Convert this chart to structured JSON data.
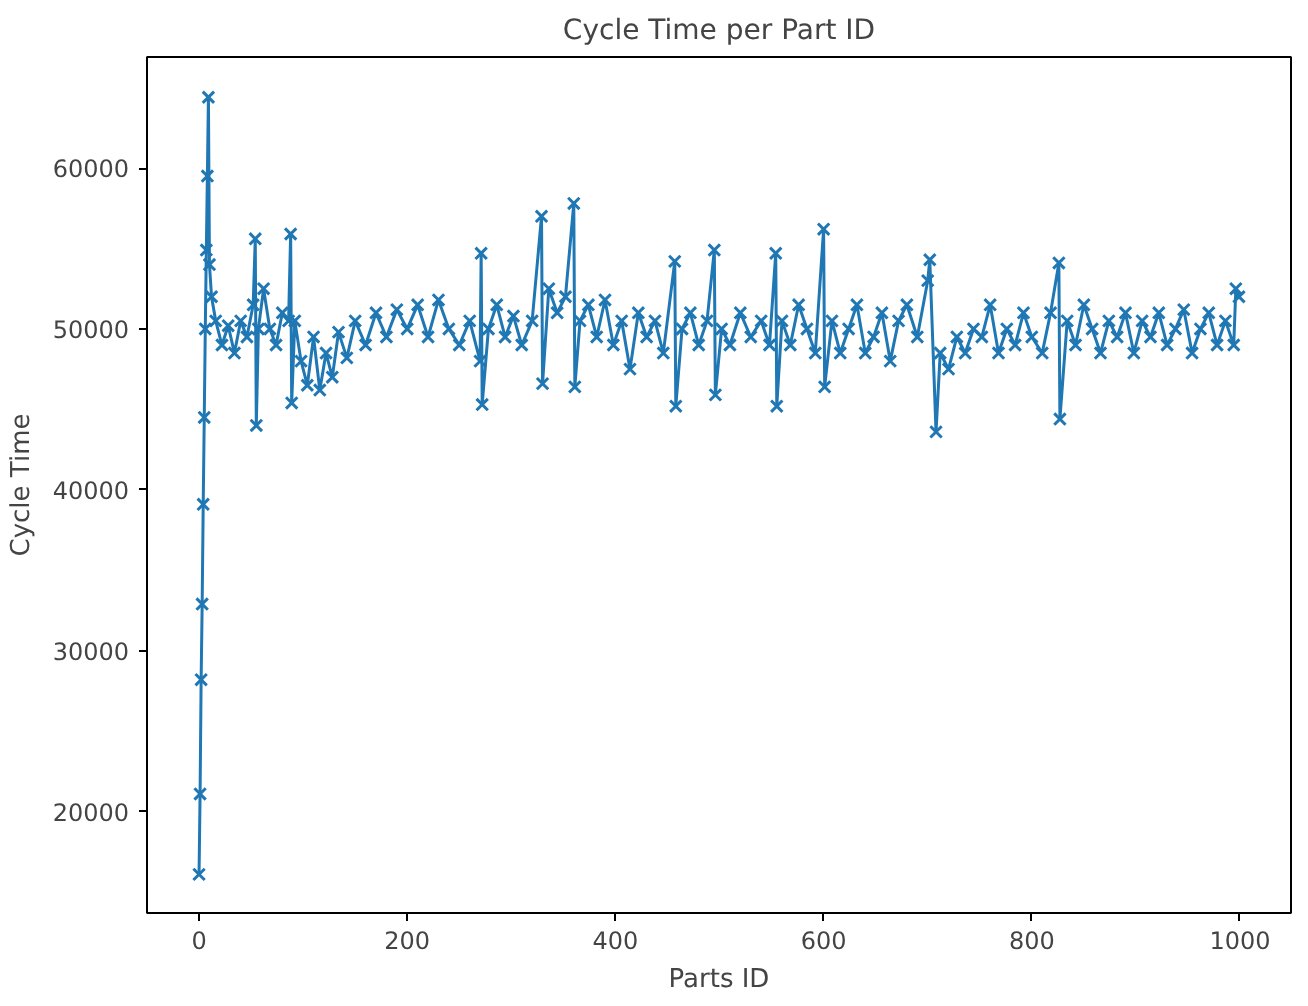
{
  "chart_data": {
    "type": "line",
    "title": "Cycle Time per Part ID",
    "xlabel": "Parts ID",
    "ylabel": "Cycle Time",
    "xlim": [
      -50,
      1049
    ],
    "ylim": [
      13700,
      66900
    ],
    "xticks": [
      0,
      200,
      400,
      600,
      800,
      1000
    ],
    "yticks": [
      20000,
      30000,
      40000,
      50000,
      60000
    ],
    "grid": false,
    "marker": "cross",
    "line_style": "solid",
    "x": [
      0,
      1,
      2,
      3,
      4,
      5,
      6,
      7,
      8,
      9,
      10,
      12,
      16,
      22,
      28,
      34,
      40,
      46,
      52,
      54,
      55,
      57,
      62,
      68,
      74,
      80,
      86,
      88,
      89,
      92,
      98,
      104,
      110,
      116,
      122,
      128,
      134,
      142,
      150,
      160,
      170,
      180,
      190,
      200,
      210,
      220,
      230,
      240,
      250,
      260,
      270,
      271,
      272,
      278,
      286,
      294,
      302,
      310,
      320,
      329,
      330,
      336,
      344,
      352,
      360,
      361,
      366,
      374,
      382,
      390,
      398,
      406,
      414,
      422,
      430,
      438,
      446,
      457,
      458,
      464,
      472,
      480,
      488,
      495,
      496,
      502,
      510,
      520,
      530,
      540,
      548,
      554,
      555,
      560,
      568,
      576,
      584,
      592,
      600,
      601,
      608,
      616,
      624,
      632,
      640,
      648,
      656,
      664,
      672,
      680,
      690,
      700,
      702,
      708,
      712,
      720,
      728,
      736,
      744,
      752,
      760,
      768,
      776,
      784,
      792,
      800,
      810,
      818,
      826,
      827,
      834,
      842,
      850,
      858,
      866,
      874,
      882,
      890,
      898,
      906,
      914,
      922,
      930,
      938,
      946,
      954,
      962,
      970,
      978,
      986,
      994,
      996,
      999
    ],
    "series": [
      {
        "color": "#1f77b4",
        "values": [
          16100,
          21100,
          28200,
          32900,
          39100,
          44500,
          50000,
          54900,
          59500,
          64400,
          54000,
          52000,
          50500,
          49000,
          50200,
          48500,
          50500,
          49500,
          51500,
          55600,
          44000,
          50000,
          52500,
          50000,
          49000,
          51000,
          50500,
          55900,
          45400,
          50500,
          48000,
          46500,
          49500,
          46200,
          48500,
          47000,
          49800,
          48200,
          50500,
          49000,
          51000,
          49500,
          51200,
          50000,
          51500,
          49500,
          51800,
          50000,
          49000,
          50500,
          48000,
          54700,
          45300,
          50000,
          51500,
          49500,
          50800,
          49000,
          50500,
          57000,
          46600,
          52500,
          51000,
          52000,
          57800,
          46400,
          50500,
          51500,
          49500,
          51800,
          49000,
          50500,
          47500,
          51000,
          49500,
          50500,
          48500,
          54200,
          45200,
          50000,
          51000,
          49000,
          50500,
          54900,
          45900,
          50000,
          49000,
          51000,
          49500,
          50500,
          49000,
          54700,
          45200,
          50500,
          49000,
          51500,
          50000,
          48500,
          56200,
          46400,
          50500,
          48500,
          50000,
          51500,
          48500,
          49500,
          51000,
          48000,
          50500,
          51500,
          49500,
          53000,
          54300,
          43600,
          48500,
          47500,
          49500,
          48500,
          50000,
          49500,
          51500,
          48500,
          50000,
          49000,
          51000,
          49500,
          48500,
          51000,
          54100,
          44400,
          50500,
          49000,
          51500,
          50000,
          48500,
          50500,
          49500,
          51000,
          48500,
          50500,
          49500,
          51000,
          49000,
          50000,
          51200,
          48500,
          50000,
          51000,
          49000,
          50500,
          49000,
          52500,
          52000
        ]
      }
    ]
  }
}
